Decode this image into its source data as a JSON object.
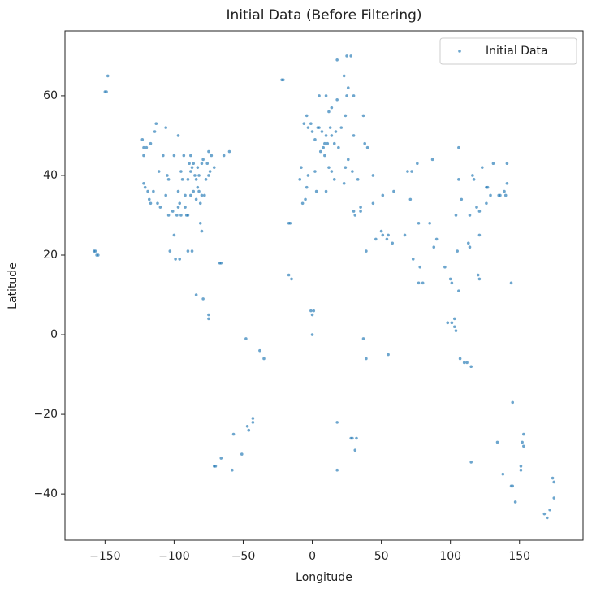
{
  "chart_data": {
    "type": "scatter",
    "title": "Initial Data (Before Filtering)",
    "x_label": "Longitude",
    "y_label": "Latitude",
    "xlim": [
      -179,
      196
    ],
    "ylim": [
      -51.6,
      76.3
    ],
    "xticks": [
      {
        "value": -150,
        "label": "−150"
      },
      {
        "value": -100,
        "label": "−100"
      },
      {
        "value": -50,
        "label": "−50"
      },
      0,
      50,
      100,
      150
    ],
    "yticks": [
      {
        "value": -40,
        "label": "−40"
      },
      {
        "value": -20,
        "label": "−20"
      },
      0,
      20,
      40,
      60
    ],
    "legend": "upper right",
    "grid": false,
    "x": [
      -122,
      -122,
      -122,
      -121,
      -118,
      -117,
      -112,
      -105,
      -104,
      -97,
      -96,
      -95,
      -90,
      -87,
      -88,
      -84,
      -83,
      -81,
      -80,
      -80,
      -77,
      -75,
      -74,
      -71,
      -73,
      -79,
      -85,
      -86,
      -90,
      -93,
      -94,
      -98,
      -106,
      -111,
      -115,
      -123,
      -114,
      -113,
      -97,
      -82,
      -78,
      -76,
      -89,
      -92,
      -95,
      -100,
      -101,
      -104,
      -99,
      -103,
      -100,
      -96,
      -90,
      -87,
      -66,
      -67,
      -84,
      -79,
      -75,
      -75,
      -81,
      -82,
      -84,
      -86,
      -88,
      -91,
      -97,
      -110,
      -119,
      -120,
      -117,
      -108,
      -75,
      -64,
      -60,
      -106,
      -80,
      -83,
      -88,
      -92,
      -158,
      -157,
      -156,
      -155,
      -150,
      -149,
      -148,
      -22,
      -21,
      0,
      2,
      -3,
      -6,
      -4,
      -1,
      4,
      5,
      7,
      9,
      10,
      13,
      11,
      8,
      6,
      14,
      16,
      19,
      21,
      17,
      24,
      25,
      10,
      18,
      12,
      5,
      14,
      26,
      30,
      23,
      18,
      25,
      28,
      -3,
      -4,
      -9,
      -8,
      2,
      12,
      9,
      14,
      16,
      23,
      26,
      24,
      29,
      33,
      37,
      38,
      40,
      30,
      44,
      35,
      35,
      30,
      31,
      -5,
      -7,
      3,
      10,
      -17,
      -16,
      -15,
      -17,
      -1,
      0,
      -47,
      -43,
      -46,
      -58,
      -70,
      -71,
      -66,
      -57,
      -51,
      -43,
      -38,
      -35,
      -48,
      0,
      1,
      37,
      39,
      55,
      28,
      29,
      18,
      18,
      31,
      32,
      46,
      50,
      55,
      54,
      58,
      39,
      51,
      44,
      51,
      59,
      67,
      73,
      77,
      77,
      80,
      88,
      78,
      85,
      71,
      90,
      96,
      100,
      101,
      106,
      105,
      103,
      101,
      104,
      103,
      98,
      107,
      110,
      112,
      115,
      121,
      120,
      114,
      113,
      121,
      116,
      117,
      121,
      126,
      127,
      129,
      126,
      135,
      139,
      140,
      136,
      141,
      141,
      131,
      123,
      104,
      108,
      114,
      106,
      119,
      87,
      76,
      72,
      69,
      106,
      144,
      145,
      134,
      138,
      145,
      144,
      151,
      153,
      152,
      151,
      147,
      115,
      153,
      168,
      172,
      175,
      175,
      174,
      170
    ],
    "series": [
      {
        "name": "Initial Data",
        "color": "#1f77b4",
        "values": [
          47,
          45,
          38,
          37,
          34,
          33,
          33,
          40,
          39,
          32,
          33,
          30,
          30,
          42,
          41,
          34,
          42,
          28,
          26,
          35,
          39,
          40,
          41,
          42,
          45,
          44,
          40,
          36,
          39,
          45,
          39,
          30,
          35,
          41,
          36,
          49,
          51,
          53,
          50,
          36,
          35,
          43,
          43,
          35,
          41,
          45,
          31,
          30,
          19,
          21,
          25,
          19,
          21,
          21,
          18,
          18,
          10,
          9,
          5,
          4,
          33,
          40,
          39,
          43,
          45,
          30,
          36,
          32,
          36,
          47,
          48,
          45,
          46,
          45,
          46,
          52,
          43,
          37,
          35,
          32,
          21,
          21,
          20,
          20,
          61,
          61,
          65,
          64,
          64,
          51,
          49,
          52,
          53,
          55,
          53,
          52,
          52,
          51,
          48,
          50,
          52,
          48,
          47,
          46,
          50,
          48,
          47,
          52,
          51,
          55,
          60,
          60,
          59,
          56,
          60,
          57,
          62,
          60,
          65,
          69,
          70,
          70,
          40,
          37,
          39,
          42,
          41,
          42,
          45,
          41,
          39,
          38,
          44,
          42,
          41,
          39,
          55,
          48,
          47,
          50,
          40,
          32,
          31,
          31,
          30,
          34,
          33,
          36,
          36,
          28,
          28,
          14,
          15,
          6,
          5,
          -23,
          -22,
          -24,
          -34,
          -33,
          -33,
          -31,
          -25,
          -30,
          -21,
          -4,
          -6,
          -1,
          0,
          6,
          -1,
          -6,
          -5,
          -26,
          -26,
          -34,
          -22,
          -29,
          -26,
          24,
          26,
          25,
          24,
          23,
          21,
          25,
          33,
          35,
          36,
          25,
          19,
          28,
          13,
          13,
          22,
          17,
          28,
          34,
          24,
          17,
          14,
          13,
          11,
          21,
          4,
          3,
          1,
          2,
          3,
          -6,
          -7,
          -7,
          -8,
          14,
          15,
          22,
          23,
          31,
          40,
          39,
          25,
          37,
          37,
          35,
          33,
          35,
          36,
          35,
          35,
          38,
          43,
          43,
          42,
          30,
          34,
          30,
          39,
          32,
          44,
          43,
          41,
          41,
          47,
          13,
          -17,
          -27,
          -35,
          -38,
          -38,
          -34,
          -28,
          -27,
          -33,
          -42,
          -32,
          -25,
          -45,
          -44,
          -37,
          -41,
          -36,
          -46
        ]
      }
    ]
  }
}
